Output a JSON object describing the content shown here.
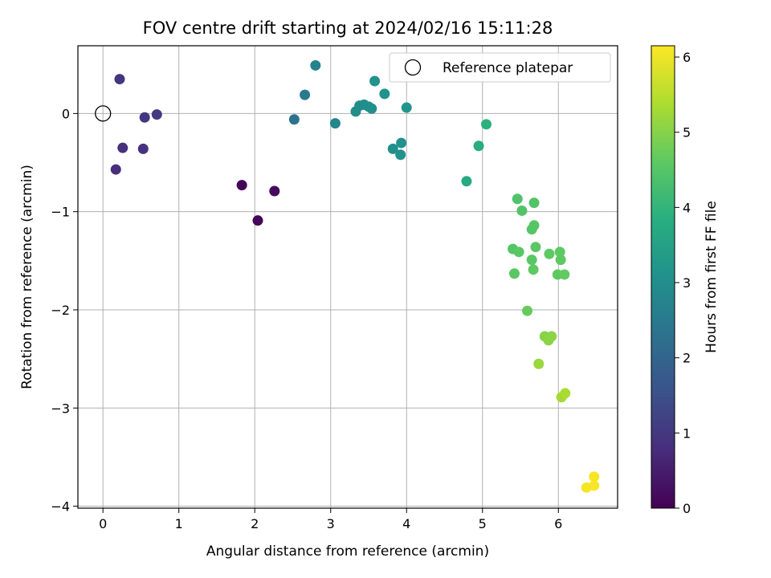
{
  "chart_data": {
    "type": "scatter",
    "title": "FOV centre drift starting at 2024/02/16 15:11:28",
    "xlabel": "Angular distance from reference (arcmin)",
    "ylabel": "Rotation from reference (arcmin)",
    "xlim": [
      -0.33,
      6.78
    ],
    "ylim": [
      -4.02,
      0.69
    ],
    "xticks": [
      0,
      1,
      2,
      3,
      4,
      5,
      6
    ],
    "yticks": [
      0,
      -1,
      -2,
      -3,
      -4
    ],
    "xtick_labels": [
      "0",
      "1",
      "2",
      "3",
      "4",
      "5",
      "6"
    ],
    "ytick_labels": [
      "0",
      "−1",
      "−2",
      "−3",
      "−4"
    ],
    "grid": true,
    "colormap": "viridis",
    "colorbar": {
      "label": "Hours from first FF file",
      "range": [
        0,
        6.15
      ],
      "ticks": [
        0,
        1,
        2,
        3,
        4,
        5,
        6
      ],
      "tick_labels": [
        "0",
        "1",
        "2",
        "3",
        "4",
        "5",
        "6"
      ]
    },
    "reference": {
      "label": "Reference platepar",
      "x": 0,
      "y": 0
    },
    "legend_position": "top-right",
    "points": [
      {
        "x": 1.83,
        "y": -0.73,
        "c": 0.05
      },
      {
        "x": 2.04,
        "y": -1.09,
        "c": 0.1
      },
      {
        "x": 2.26,
        "y": -0.79,
        "c": 0.15
      },
      {
        "x": 0.17,
        "y": -0.57,
        "c": 0.8
      },
      {
        "x": 0.26,
        "y": -0.35,
        "c": 0.85
      },
      {
        "x": 0.53,
        "y": -0.36,
        "c": 0.9
      },
      {
        "x": 0.22,
        "y": 0.35,
        "c": 0.95
      },
      {
        "x": 0.55,
        "y": -0.04,
        "c": 1.0
      },
      {
        "x": 0.71,
        "y": -0.01,
        "c": 1.05
      },
      {
        "x": 2.52,
        "y": -0.06,
        "c": 2.3
      },
      {
        "x": 2.66,
        "y": 0.19,
        "c": 2.5
      },
      {
        "x": 2.8,
        "y": 0.49,
        "c": 2.7
      },
      {
        "x": 3.06,
        "y": -0.1,
        "c": 2.8
      },
      {
        "x": 3.33,
        "y": 0.02,
        "c": 3.0
      },
      {
        "x": 3.38,
        "y": 0.08,
        "c": 3.0
      },
      {
        "x": 3.44,
        "y": 0.09,
        "c": 3.0
      },
      {
        "x": 3.5,
        "y": 0.07,
        "c": 3.05
      },
      {
        "x": 3.54,
        "y": 0.05,
        "c": 3.05
      },
      {
        "x": 3.58,
        "y": 0.33,
        "c": 3.1
      },
      {
        "x": 3.71,
        "y": 0.2,
        "c": 3.1
      },
      {
        "x": 3.82,
        "y": -0.36,
        "c": 3.05
      },
      {
        "x": 3.92,
        "y": -0.42,
        "c": 3.1
      },
      {
        "x": 3.93,
        "y": -0.3,
        "c": 3.1
      },
      {
        "x": 4.0,
        "y": 0.06,
        "c": 3.2
      },
      {
        "x": 4.79,
        "y": -0.69,
        "c": 3.7
      },
      {
        "x": 4.95,
        "y": -0.33,
        "c": 3.8
      },
      {
        "x": 5.05,
        "y": -0.11,
        "c": 3.9
      },
      {
        "x": 5.46,
        "y": -0.87,
        "c": 4.4
      },
      {
        "x": 5.52,
        "y": -0.99,
        "c": 4.45
      },
      {
        "x": 5.68,
        "y": -0.91,
        "c": 4.45
      },
      {
        "x": 5.65,
        "y": -1.18,
        "c": 4.5
      },
      {
        "x": 5.68,
        "y": -1.14,
        "c": 4.5
      },
      {
        "x": 5.4,
        "y": -1.38,
        "c": 4.5
      },
      {
        "x": 5.48,
        "y": -1.41,
        "c": 4.55
      },
      {
        "x": 5.7,
        "y": -1.36,
        "c": 4.55
      },
      {
        "x": 5.65,
        "y": -1.49,
        "c": 4.55
      },
      {
        "x": 5.42,
        "y": -1.63,
        "c": 4.55
      },
      {
        "x": 5.67,
        "y": -1.59,
        "c": 4.6
      },
      {
        "x": 5.88,
        "y": -1.43,
        "c": 4.6
      },
      {
        "x": 6.02,
        "y": -1.41,
        "c": 4.6
      },
      {
        "x": 6.03,
        "y": -1.49,
        "c": 4.6
      },
      {
        "x": 5.99,
        "y": -1.64,
        "c": 4.6
      },
      {
        "x": 6.08,
        "y": -1.64,
        "c": 4.65
      },
      {
        "x": 5.59,
        "y": -2.01,
        "c": 4.7
      },
      {
        "x": 5.82,
        "y": -2.27,
        "c": 5.0
      },
      {
        "x": 5.87,
        "y": -2.31,
        "c": 5.05
      },
      {
        "x": 5.91,
        "y": -2.27,
        "c": 5.05
      },
      {
        "x": 5.74,
        "y": -2.55,
        "c": 5.2
      },
      {
        "x": 6.04,
        "y": -2.89,
        "c": 5.3
      },
      {
        "x": 6.09,
        "y": -2.85,
        "c": 5.35
      },
      {
        "x": 6.37,
        "y": -3.81,
        "c": 6.05
      },
      {
        "x": 6.47,
        "y": -3.7,
        "c": 6.1
      },
      {
        "x": 6.47,
        "y": -3.79,
        "c": 6.1
      }
    ]
  }
}
